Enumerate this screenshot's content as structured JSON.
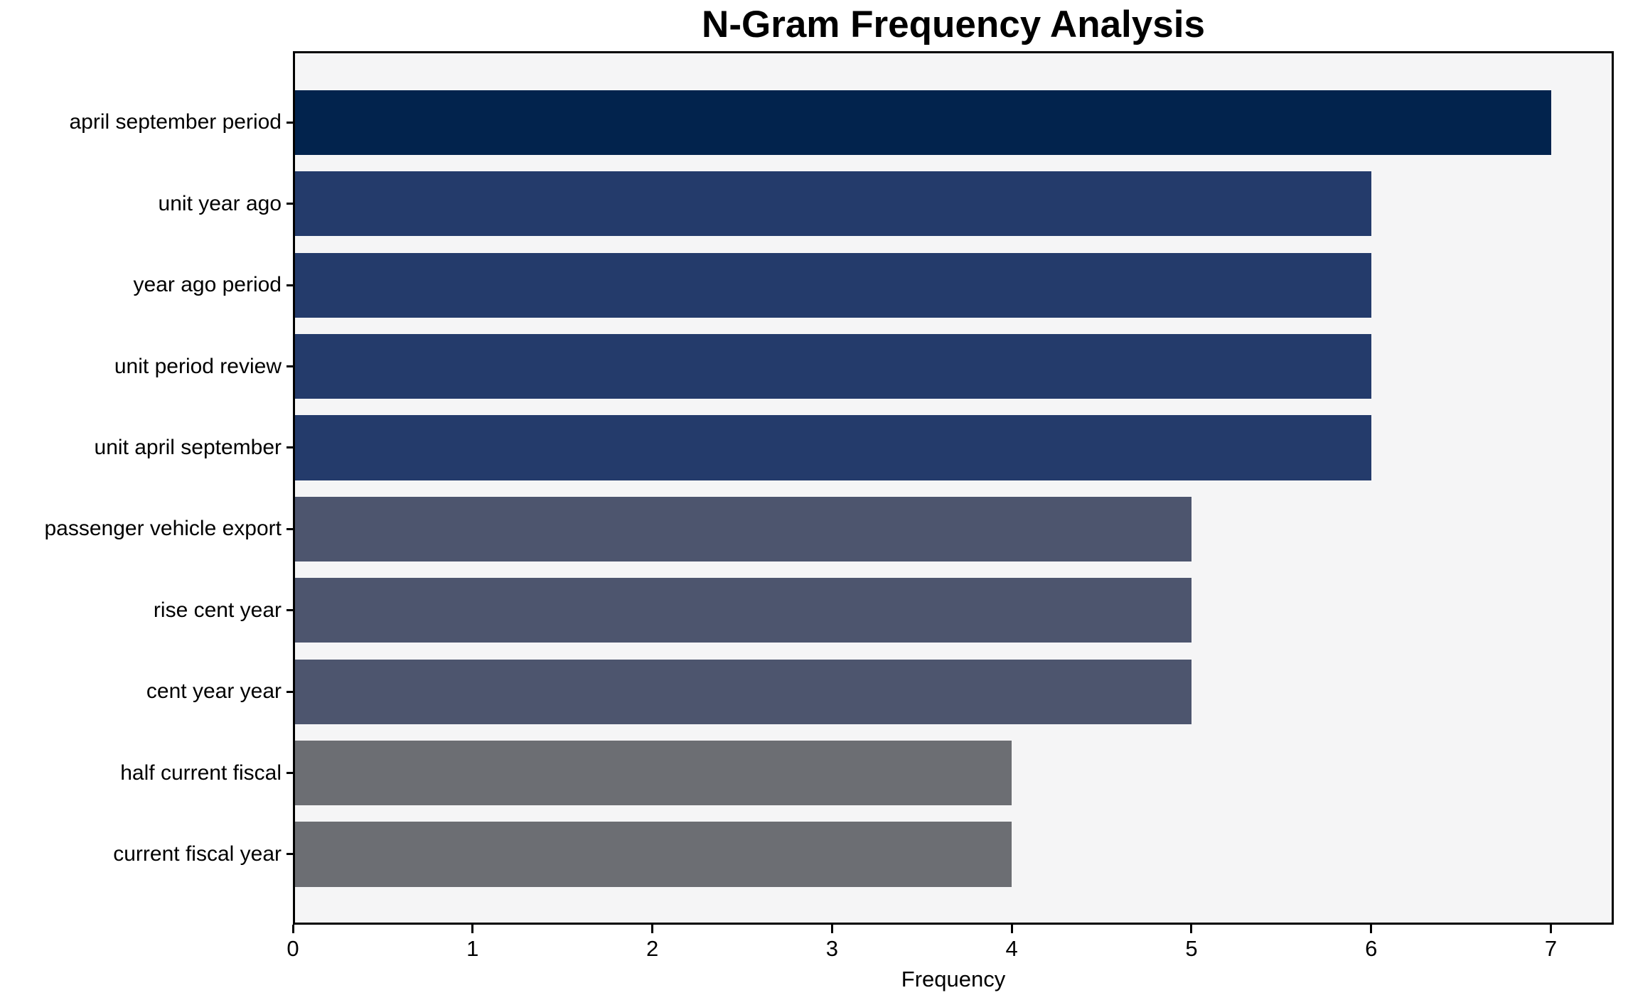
{
  "chart_data": {
    "type": "bar",
    "orientation": "horizontal",
    "title": "N-Gram Frequency Analysis",
    "xlabel": "Frequency",
    "ylabel": "",
    "categories": [
      "april september period",
      "unit year ago",
      "year ago period",
      "unit period review",
      "unit april september",
      "passenger vehicle export",
      "rise cent year",
      "cent year year",
      "half current fiscal",
      "current fiscal year"
    ],
    "values": [
      7,
      6,
      6,
      6,
      6,
      5,
      5,
      5,
      4,
      4
    ],
    "bar_colors": [
      "#02234d",
      "#243b6b",
      "#243b6b",
      "#243b6b",
      "#243b6b",
      "#4d556e",
      "#4d556e",
      "#4d556e",
      "#6c6e73",
      "#6c6e73"
    ],
    "xticks": [
      "0",
      "1",
      "2",
      "3",
      "4",
      "5",
      "6",
      "7"
    ],
    "xtick_values": [
      0,
      1,
      2,
      3,
      4,
      5,
      6,
      7
    ],
    "xlim": [
      0,
      7.35
    ],
    "grid": false,
    "legend_position": "none",
    "plot_background": "#f5f5f6",
    "figure_background": "#ffffff",
    "axis_color": "#000000"
  }
}
